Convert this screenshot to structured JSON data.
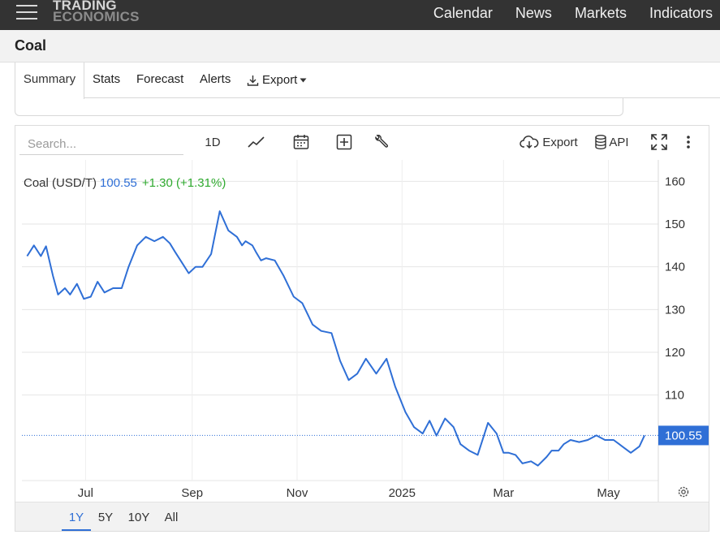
{
  "nav": {
    "logo_line1": "TRADING",
    "logo_line2": "ECONOMICS",
    "links": [
      "Calendar",
      "News",
      "Markets",
      "Indicators"
    ]
  },
  "page": {
    "title": "Coal"
  },
  "tabs": [
    "Summary",
    "Stats",
    "Forecast",
    "Alerts",
    "Export"
  ],
  "toolbar": {
    "search_placeholder": "Search...",
    "interval": "1D",
    "export_label": "Export",
    "api_label": "API"
  },
  "legend": {
    "name": "Coal (USD/T)",
    "price": "100.55",
    "change": "+1.30 (+1.31%)"
  },
  "ranges": [
    "1Y",
    "5Y",
    "10Y",
    "All"
  ],
  "active_range": "1Y",
  "colors": {
    "line": "#2f6fd6",
    "change": "#2faa2f",
    "topbar": "#333333"
  },
  "chart_data": {
    "type": "line",
    "series": [
      {
        "name": "Coal (USD/T)",
        "x": [
          "2024-05-28",
          "2024-06-01",
          "2024-06-05",
          "2024-06-08",
          "2024-06-12",
          "2024-06-15",
          "2024-06-19",
          "2024-06-22",
          "2024-06-26",
          "2024-06-30",
          "2024-07-04",
          "2024-07-08",
          "2024-07-12",
          "2024-07-17",
          "2024-07-22",
          "2024-07-26",
          "2024-07-31",
          "2024-08-05",
          "2024-08-10",
          "2024-08-15",
          "2024-08-19",
          "2024-08-22",
          "2024-08-26",
          "2024-08-30",
          "2024-09-03",
          "2024-09-07",
          "2024-09-12",
          "2024-09-17",
          "2024-09-22",
          "2024-09-27",
          "2024-09-30",
          "2024-10-02",
          "2024-10-06",
          "2024-10-08",
          "2024-10-11",
          "2024-10-14",
          "2024-10-19",
          "2024-10-24",
          "2024-10-30",
          "2024-11-04",
          "2024-11-10",
          "2024-11-15",
          "2024-11-21",
          "2024-11-26",
          "2024-12-01",
          "2024-12-06",
          "2024-12-11",
          "2024-12-17",
          "2024-12-23",
          "2024-12-28",
          "2025-01-03",
          "2025-01-08",
          "2025-01-13",
          "2025-01-17",
          "2025-01-21",
          "2025-01-26",
          "2025-01-31",
          "2025-02-04",
          "2025-02-09",
          "2025-02-14",
          "2025-02-20",
          "2025-02-25",
          "2025-03-01",
          "2025-03-04",
          "2025-03-08",
          "2025-03-12",
          "2025-03-17",
          "2025-03-21",
          "2025-03-26",
          "2025-03-29",
          "2025-04-02",
          "2025-04-05",
          "2025-04-09",
          "2025-04-14",
          "2025-04-19",
          "2025-04-24",
          "2025-04-29",
          "2025-05-04",
          "2025-05-09",
          "2025-05-14",
          "2025-05-19",
          "2025-05-22"
        ],
        "values": [
          142.5,
          145,
          142.5,
          144.8,
          138,
          133.5,
          135,
          133.5,
          136,
          132.5,
          133,
          136.5,
          134,
          135,
          135,
          140,
          145,
          147,
          146,
          147,
          145.5,
          143.5,
          141,
          138.5,
          140,
          140,
          143,
          153,
          148.5,
          147,
          145,
          146,
          145,
          143.5,
          141.5,
          142,
          141.5,
          138,
          133,
          131.5,
          126.5,
          125,
          124.5,
          118,
          113.5,
          115,
          118.5,
          115,
          118.5,
          112,
          106,
          102.5,
          101,
          104,
          100.5,
          104.5,
          102.5,
          98.5,
          97,
          96,
          103.5,
          101,
          96.5,
          96.5,
          96,
          94,
          94.5,
          93.5,
          95.5,
          97,
          97,
          98.5,
          99.5,
          99,
          99.5,
          100.55,
          99.5,
          99.5,
          98,
          96.5,
          98,
          100.55
        ]
      }
    ],
    "ylim": [
      90,
      165
    ],
    "yticks": [
      110,
      120,
      130,
      140,
      150,
      160
    ],
    "xticks": [
      {
        "date": "2024-07-01",
        "label": "Jul"
      },
      {
        "date": "2024-09-01",
        "label": "Sep"
      },
      {
        "date": "2024-11-01",
        "label": "Nov"
      },
      {
        "date": "2025-01-01",
        "label": "2025"
      },
      {
        "date": "2025-03-01",
        "label": "Mar"
      },
      {
        "date": "2025-05-01",
        "label": "May"
      }
    ],
    "last_value_label": "100.55",
    "grid": true,
    "y_axis_position": "right"
  }
}
